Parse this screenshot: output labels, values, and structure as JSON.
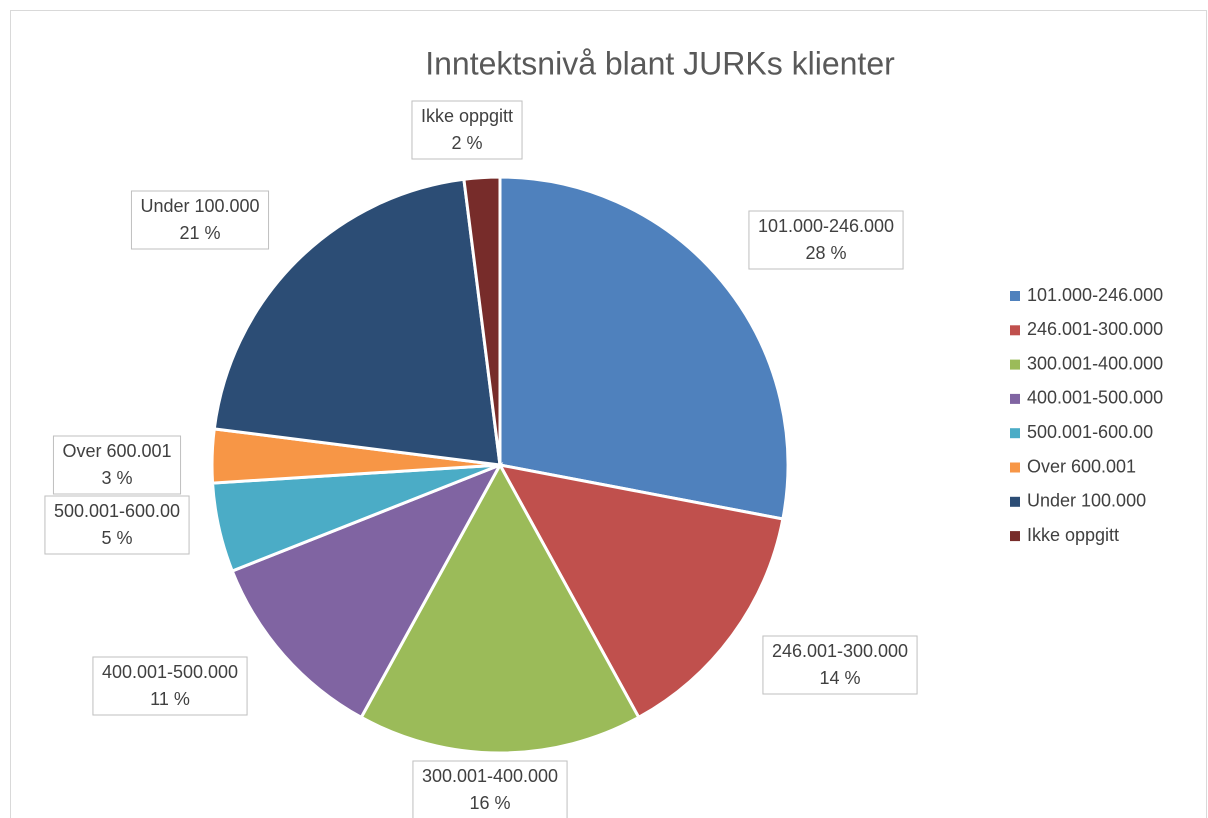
{
  "chart_data": {
    "type": "pie",
    "title": "Inntektsnivå blant JURKs klienter",
    "categories": [
      "101.000-246.000",
      "246.001-300.000",
      "300.001-400.000",
      "400.001-500.000",
      "500.001-600.00",
      "Over 600.001",
      "Under 100.000",
      "Ikke oppgitt"
    ],
    "values": [
      28,
      14,
      16,
      11,
      5,
      3,
      21,
      2
    ],
    "value_labels": [
      "28 %",
      "14 %",
      "16 %",
      "11 %",
      "5 %",
      "3 %",
      "21 %",
      "2 %"
    ],
    "colors": [
      "#4f81bd",
      "#c0504d",
      "#9bbb59",
      "#8064a2",
      "#4bacc6",
      "#f79646",
      "#2c4d75",
      "#772c2a"
    ],
    "legend": "right"
  }
}
